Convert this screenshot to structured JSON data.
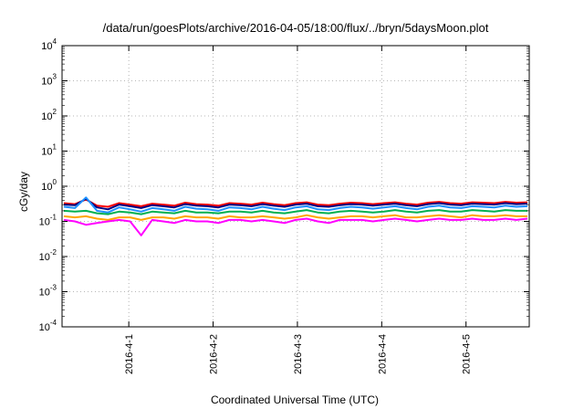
{
  "chart_data": {
    "type": "line",
    "title": "/data/run/goesPlots/archive/2016-04-05/18:00/flux/../bryn/5daysMoon.plot",
    "xlabel": "Coordinated Universal Time (UTC)",
    "ylabel": "cGy/day",
    "yscale": "log",
    "ylim": [
      0.0001,
      10000
    ],
    "yticks": [
      {
        "base": "10",
        "exp": "-4"
      },
      {
        "base": "10",
        "exp": "-3"
      },
      {
        "base": "10",
        "exp": "-2"
      },
      {
        "base": "10",
        "exp": "-1"
      },
      {
        "base": "10",
        "exp": "0"
      },
      {
        "base": "10",
        "exp": "1"
      },
      {
        "base": "10",
        "exp": "2"
      },
      {
        "base": "10",
        "exp": "3"
      },
      {
        "base": "10",
        "exp": "4"
      }
    ],
    "xlim": [
      "2016-03-31 05:00",
      "2016-04-05 18:00"
    ],
    "xticks": [
      "2016-4-1",
      "2016-4-2",
      "2016-4-3",
      "2016-4-4",
      "2016-4-5"
    ],
    "grid": true,
    "series": [
      {
        "color": "#ff0000",
        "values": [
          0.33,
          0.31,
          0.42,
          0.28,
          0.26,
          0.33,
          0.3,
          0.27,
          0.32,
          0.3,
          0.28,
          0.34,
          0.31,
          0.3,
          0.28,
          0.33,
          0.32,
          0.3,
          0.34,
          0.31,
          0.29,
          0.33,
          0.35,
          0.3,
          0.29,
          0.32,
          0.34,
          0.33,
          0.31,
          0.33,
          0.35,
          0.32,
          0.3,
          0.34,
          0.36,
          0.33,
          0.32,
          0.35,
          0.34,
          0.33,
          0.36,
          0.34,
          0.35
        ]
      },
      {
        "color": "#000080",
        "values": [
          0.3,
          0.29,
          0.44,
          0.25,
          0.22,
          0.3,
          0.27,
          0.24,
          0.29,
          0.27,
          0.25,
          0.31,
          0.28,
          0.27,
          0.25,
          0.3,
          0.29,
          0.27,
          0.31,
          0.28,
          0.26,
          0.3,
          0.32,
          0.27,
          0.26,
          0.29,
          0.31,
          0.3,
          0.28,
          0.3,
          0.32,
          0.29,
          0.27,
          0.31,
          0.33,
          0.3,
          0.29,
          0.32,
          0.31,
          0.3,
          0.33,
          0.31,
          0.32
        ]
      },
      {
        "color": "#1e90ff",
        "values": [
          0.26,
          0.24,
          0.48,
          0.2,
          0.18,
          0.25,
          0.22,
          0.19,
          0.24,
          0.22,
          0.2,
          0.26,
          0.23,
          0.22,
          0.2,
          0.25,
          0.24,
          0.22,
          0.26,
          0.23,
          0.21,
          0.25,
          0.27,
          0.22,
          0.21,
          0.24,
          0.26,
          0.25,
          0.23,
          0.25,
          0.27,
          0.24,
          0.22,
          0.26,
          0.28,
          0.25,
          0.24,
          0.27,
          0.26,
          0.25,
          0.28,
          0.26,
          0.27
        ]
      },
      {
        "color": "#00b050",
        "values": [
          0.2,
          0.19,
          0.2,
          0.17,
          0.16,
          0.19,
          0.18,
          0.16,
          0.19,
          0.18,
          0.17,
          0.2,
          0.18,
          0.18,
          0.17,
          0.19,
          0.19,
          0.18,
          0.2,
          0.18,
          0.17,
          0.19,
          0.21,
          0.18,
          0.17,
          0.19,
          0.2,
          0.19,
          0.18,
          0.19,
          0.21,
          0.19,
          0.18,
          0.2,
          0.21,
          0.19,
          0.19,
          0.21,
          0.2,
          0.19,
          0.21,
          0.2,
          0.2
        ]
      },
      {
        "color": "#ffa500",
        "values": [
          0.14,
          0.13,
          0.14,
          0.12,
          0.11,
          0.13,
          0.13,
          0.11,
          0.13,
          0.13,
          0.12,
          0.14,
          0.13,
          0.13,
          0.12,
          0.14,
          0.13,
          0.13,
          0.14,
          0.13,
          0.12,
          0.13,
          0.15,
          0.13,
          0.12,
          0.13,
          0.14,
          0.14,
          0.13,
          0.14,
          0.15,
          0.13,
          0.13,
          0.14,
          0.15,
          0.14,
          0.13,
          0.15,
          0.14,
          0.14,
          0.15,
          0.14,
          0.14
        ]
      },
      {
        "color": "#ff00ff",
        "values": [
          0.11,
          0.1,
          0.08,
          0.09,
          0.1,
          0.11,
          0.1,
          0.04,
          0.11,
          0.1,
          0.09,
          0.11,
          0.1,
          0.1,
          0.09,
          0.11,
          0.11,
          0.1,
          0.11,
          0.1,
          0.09,
          0.11,
          0.12,
          0.1,
          0.09,
          0.11,
          0.11,
          0.11,
          0.1,
          0.11,
          0.12,
          0.11,
          0.1,
          0.11,
          0.12,
          0.11,
          0.11,
          0.12,
          0.11,
          0.11,
          0.12,
          0.11,
          0.12
        ]
      }
    ]
  }
}
